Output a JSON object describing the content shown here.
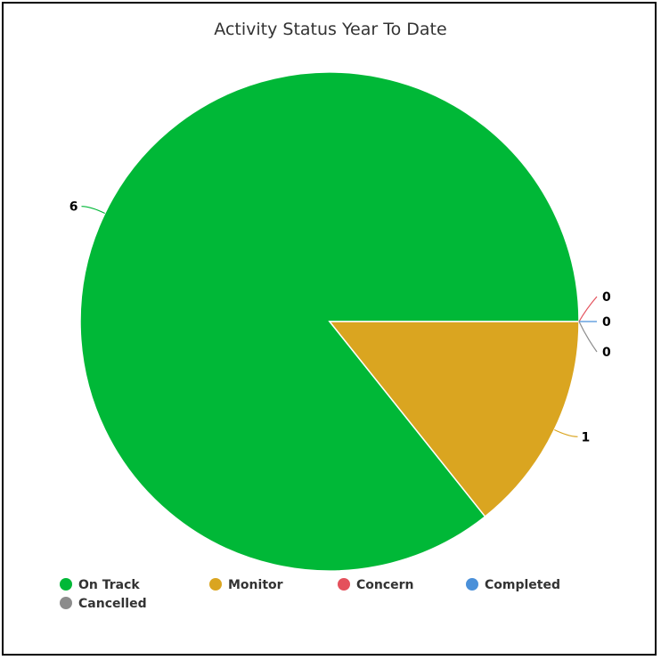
{
  "chart_data": {
    "type": "pie",
    "title": "Activity Status Year To Date",
    "categories": [
      "On Track",
      "Monitor",
      "Concern",
      "Completed",
      "Cancelled"
    ],
    "values": [
      6,
      1,
      0,
      0,
      0
    ],
    "colors": [
      "#00b837",
      "#daa520",
      "#e4515c",
      "#4a90d9",
      "#8c8c8c"
    ],
    "start_angle_deg": 0,
    "direction": "counterclockwise",
    "data_labels": true,
    "legend_position": "bottom"
  }
}
